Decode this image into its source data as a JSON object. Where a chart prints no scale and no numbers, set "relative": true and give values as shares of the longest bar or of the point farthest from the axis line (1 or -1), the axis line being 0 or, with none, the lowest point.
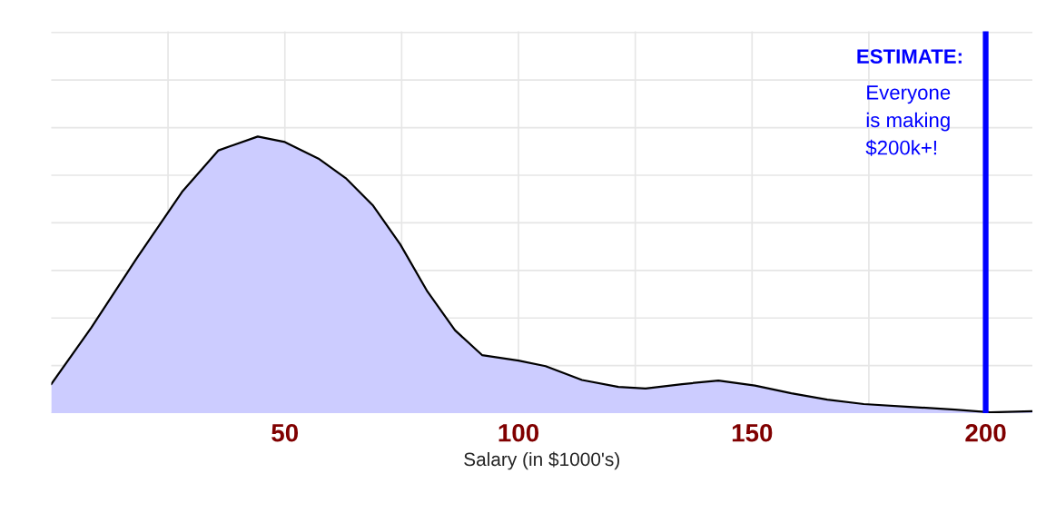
{
  "chart_data": {
    "type": "area",
    "relative": true,
    "xlabel": "Salary (in $1000's)",
    "x": [
      0,
      8.6,
      18.3,
      28,
      35.8,
      44.2,
      50,
      57.2,
      63,
      68.9,
      74.7,
      80.5,
      86.4,
      92.2,
      100,
      105.8,
      113.6,
      121.4,
      127.2,
      135,
      142.8,
      150.6,
      158.4,
      166.1,
      173.9,
      183.7,
      193.4,
      201,
      210
    ],
    "series": [
      {
        "color": "#ccccff",
        "values": [
          0.105,
          0.31,
          0.56,
          0.8,
          0.95,
          1.0,
          0.98,
          0.92,
          0.85,
          0.75,
          0.61,
          0.44,
          0.3,
          0.21,
          0.19,
          0.17,
          0.12,
          0.095,
          0.089,
          0.105,
          0.118,
          0.1,
          0.072,
          0.049,
          0.033,
          0.023,
          0.013,
          0.003,
          0.007
        ]
      }
    ],
    "xlim": [
      0,
      210
    ],
    "xticks": [
      {
        "value": 25,
        "label": null
      },
      50,
      {
        "value": 75,
        "label": null
      },
      100,
      {
        "value": 125,
        "label": null
      },
      150,
      {
        "value": 175,
        "label": null
      },
      200
    ],
    "ref_lines": [
      {
        "axis": "x",
        "value": 200,
        "color": "#0000ff"
      }
    ],
    "annotations": [
      "ESTIMATE:",
      "Everyone\nis making\n$200k+!"
    ],
    "grid": true
  }
}
